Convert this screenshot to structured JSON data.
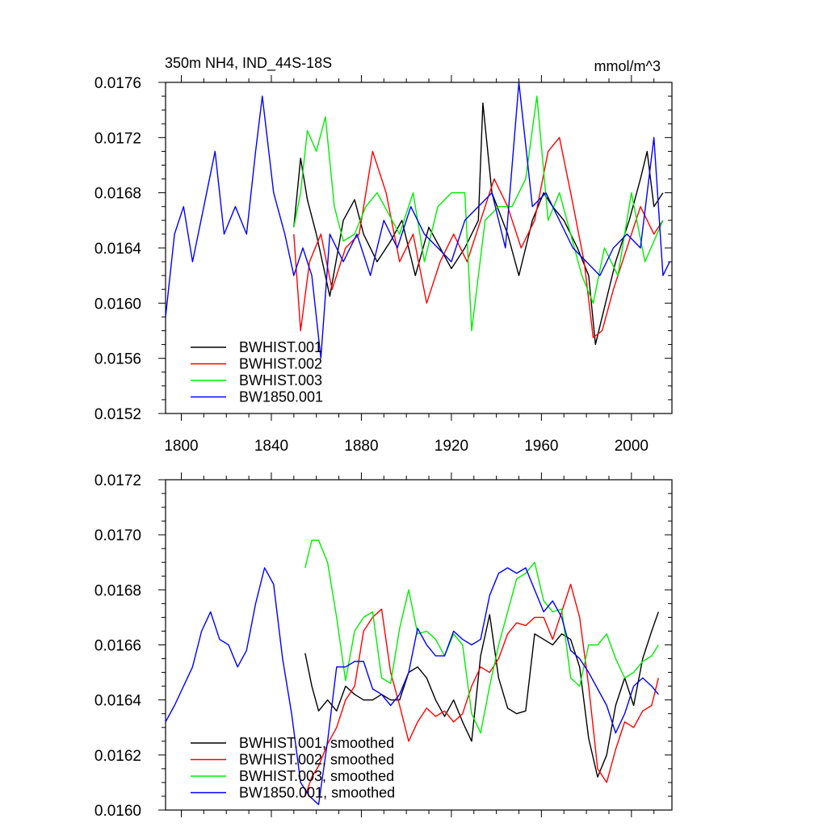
{
  "figure": {
    "title_left": "350m NH4, IND_44S-18S",
    "title_right": "mmol/m^3"
  },
  "colors": {
    "BWHIST.001": "#000000",
    "BWHIST.002": "#ff0000",
    "BWHIST.003": "#00ee00",
    "BW1850.001": "#0000ff"
  },
  "chart_data": [
    {
      "type": "line",
      "panel": "top",
      "title": "350m NH4, IND_44S-18S",
      "units": "mmol/m^3",
      "xlim": [
        1793,
        2018
      ],
      "ylim": [
        0.0152,
        0.0176
      ],
      "x_ticks": [
        1800,
        1840,
        1880,
        1920,
        1960,
        2000
      ],
      "x_tick_labels": [
        "1800",
        "1840",
        "1880",
        "1920",
        "1960",
        "2000"
      ],
      "y_ticks": [
        0.0152,
        0.0156,
        0.016,
        0.0164,
        0.0168,
        0.0172,
        0.0176
      ],
      "y_tick_labels": [
        "0.0152",
        "0.0156",
        "0.0160",
        "0.0164",
        "0.0168",
        "0.0172",
        "0.0176"
      ],
      "legend_position": "bottom-left",
      "series": [
        {
          "name": "BWHIST.001",
          "color": "#000000",
          "x_start": 1850,
          "x_end": 2014,
          "x": [
            1850,
            1853,
            1856,
            1860,
            1866,
            1872,
            1877,
            1881,
            1887,
            1893,
            1898,
            1904,
            1910,
            1915,
            1920,
            1926,
            1932,
            1934,
            1938,
            1945,
            1950,
            1956,
            1961,
            1965,
            1970,
            1976,
            1981,
            1984,
            1987,
            1993,
            1999,
            2004,
            2007,
            2010,
            2014
          ],
          "y": [
            0.01655,
            0.01705,
            0.01675,
            0.0165,
            0.01605,
            0.0166,
            0.01675,
            0.0165,
            0.0163,
            0.01645,
            0.0166,
            0.0162,
            0.01655,
            0.0164,
            0.01625,
            0.0164,
            0.0166,
            0.01745,
            0.0168,
            0.0165,
            0.0162,
            0.0166,
            0.0168,
            0.0167,
            0.0166,
            0.0164,
            0.0162,
            0.0157,
            0.0159,
            0.0163,
            0.0166,
            0.0169,
            0.0171,
            0.0167,
            0.0168
          ]
        },
        {
          "name": "BWHIST.002",
          "color": "#ff0000",
          "x_start": 1850,
          "x_end": 2014,
          "x": [
            1850,
            1853,
            1857,
            1862,
            1867,
            1873,
            1879,
            1885,
            1891,
            1897,
            1903,
            1909,
            1915,
            1921,
            1927,
            1933,
            1939,
            1945,
            1951,
            1957,
            1963,
            1968,
            1973,
            1979,
            1983,
            1987,
            1992,
            1998,
            2004,
            2010,
            2014
          ],
          "y": [
            0.0165,
            0.0158,
            0.0163,
            0.0165,
            0.0161,
            0.0164,
            0.0165,
            0.0171,
            0.0168,
            0.0163,
            0.0165,
            0.016,
            0.0163,
            0.0165,
            0.0163,
            0.0166,
            0.0169,
            0.0167,
            0.0164,
            0.0166,
            0.0171,
            0.0172,
            0.0168,
            0.0163,
            0.01575,
            0.0158,
            0.0161,
            0.0164,
            0.0167,
            0.0165,
            0.0166
          ]
        },
        {
          "name": "BWHIST.003",
          "color": "#00ee00",
          "x_start": 1850,
          "x_end": 2014,
          "x": [
            1850,
            1853,
            1856,
            1860,
            1864,
            1868,
            1872,
            1877,
            1882,
            1887,
            1892,
            1897,
            1903,
            1908,
            1914,
            1920,
            1926,
            1929,
            1935,
            1941,
            1947,
            1953,
            1958,
            1963,
            1968,
            1973,
            1978,
            1983,
            1988,
            1994,
            2000,
            2006,
            2014
          ],
          "y": [
            0.01655,
            0.0168,
            0.01725,
            0.0171,
            0.01735,
            0.0167,
            0.01645,
            0.0165,
            0.0167,
            0.0168,
            0.01665,
            0.0165,
            0.0168,
            0.0163,
            0.0167,
            0.0168,
            0.0168,
            0.0158,
            0.0166,
            0.0167,
            0.0167,
            0.0169,
            0.0175,
            0.0166,
            0.0168,
            0.0165,
            0.0162,
            0.016,
            0.0164,
            0.0162,
            0.0168,
            0.0163,
            0.0166
          ]
        },
        {
          "name": "BW1850.001",
          "color": "#0000ff",
          "x_start": 1793,
          "x_end": 2017,
          "x": [
            1793,
            1797,
            1801,
            1805,
            1810,
            1815,
            1819,
            1824,
            1829,
            1833,
            1836,
            1841,
            1846,
            1850,
            1854,
            1858,
            1862,
            1866,
            1872,
            1878,
            1884,
            1890,
            1896,
            1902,
            1908,
            1914,
            1920,
            1926,
            1932,
            1938,
            1944,
            1950,
            1956,
            1962,
            1968,
            1974,
            1980,
            1986,
            1992,
            1998,
            2004,
            2010,
            2014,
            2017
          ],
          "y": [
            0.0159,
            0.0165,
            0.0167,
            0.0163,
            0.0167,
            0.0171,
            0.0165,
            0.0167,
            0.0165,
            0.0171,
            0.0175,
            0.0168,
            0.0165,
            0.0162,
            0.0164,
            0.0162,
            0.0156,
            0.0165,
            0.0163,
            0.0165,
            0.0162,
            0.0166,
            0.0164,
            0.0167,
            0.0165,
            0.0164,
            0.0163,
            0.0166,
            0.0167,
            0.0168,
            0.0164,
            0.0176,
            0.0167,
            0.0168,
            0.0166,
            0.0164,
            0.0163,
            0.0162,
            0.0164,
            0.0165,
            0.0164,
            0.0172,
            0.0162,
            0.0163
          ]
        }
      ]
    },
    {
      "type": "line",
      "panel": "bottom",
      "xlim": [
        1793,
        2018
      ],
      "ylim": [
        0.016,
        0.0172
      ],
      "x_ticks": [
        1800,
        1840,
        1880,
        1920,
        1960,
        2000
      ],
      "y_ticks": [
        0.016,
        0.0162,
        0.0164,
        0.0166,
        0.0168,
        0.017,
        0.0172
      ],
      "y_tick_labels": [
        "0.0160",
        "0.0162",
        "0.0164",
        "0.0166",
        "0.0168",
        "0.0170",
        "0.0172"
      ],
      "legend_position": "bottom-left",
      "series": [
        {
          "name": "BWHIST.001, smoothed",
          "color": "#000000",
          "x": [
            1855,
            1858,
            1861,
            1865,
            1869,
            1873,
            1877,
            1881,
            1885,
            1889,
            1893,
            1897,
            1901,
            1905,
            1909,
            1913,
            1917,
            1921,
            1925,
            1929,
            1933,
            1937,
            1941,
            1945,
            1949,
            1953,
            1957,
            1961,
            1965,
            1969,
            1973,
            1977,
            1981,
            1985,
            1989,
            1993,
            1997,
            2001,
            2005,
            2009,
            2012
          ],
          "y": [
            0.01657,
            0.01645,
            0.01636,
            0.0164,
            0.01636,
            0.01645,
            0.01642,
            0.0164,
            0.0164,
            0.01642,
            0.0164,
            0.0164,
            0.0165,
            0.01652,
            0.01648,
            0.0164,
            0.01634,
            0.0164,
            0.01632,
            0.01625,
            0.01656,
            0.01671,
            0.01648,
            0.01637,
            0.01635,
            0.01636,
            0.01664,
            0.01662,
            0.0166,
            0.01664,
            0.01662,
            0.01652,
            0.01626,
            0.01612,
            0.0162,
            0.01638,
            0.01648,
            0.01638,
            0.01655,
            0.01665,
            0.01672
          ]
        },
        {
          "name": "BWHIST.002, smoothed",
          "color": "#ff0000",
          "x": [
            1855,
            1858,
            1861,
            1865,
            1869,
            1873,
            1877,
            1881,
            1885,
            1889,
            1893,
            1897,
            1901,
            1905,
            1909,
            1913,
            1917,
            1921,
            1925,
            1929,
            1933,
            1937,
            1941,
            1945,
            1949,
            1953,
            1957,
            1961,
            1965,
            1969,
            1973,
            1977,
            1981,
            1985,
            1989,
            1993,
            1997,
            2001,
            2005,
            2009,
            2012
          ],
          "y": [
            0.01605,
            0.01612,
            0.01616,
            0.01624,
            0.0163,
            0.0164,
            0.01645,
            0.01665,
            0.0167,
            0.01673,
            0.0165,
            0.01638,
            0.01625,
            0.01632,
            0.01637,
            0.01634,
            0.01636,
            0.01632,
            0.01635,
            0.01645,
            0.01652,
            0.0165,
            0.01655,
            0.01664,
            0.01668,
            0.01667,
            0.0167,
            0.0167,
            0.01662,
            0.01672,
            0.01682,
            0.0167,
            0.01645,
            0.01615,
            0.0161,
            0.01622,
            0.01632,
            0.0163,
            0.01636,
            0.01638,
            0.01648
          ]
        },
        {
          "name": "BWHIST.003, smoothed",
          "color": "#00ee00",
          "x": [
            1855,
            1858,
            1861,
            1865,
            1869,
            1873,
            1877,
            1881,
            1885,
            1889,
            1893,
            1897,
            1901,
            1905,
            1909,
            1913,
            1917,
            1921,
            1925,
            1929,
            1933,
            1937,
            1941,
            1945,
            1949,
            1953,
            1957,
            1961,
            1965,
            1969,
            1973,
            1977,
            1981,
            1985,
            1989,
            1993,
            1997,
            2001,
            2005,
            2009,
            2012
          ],
          "y": [
            0.01688,
            0.01698,
            0.01698,
            0.0169,
            0.0167,
            0.01647,
            0.01665,
            0.0167,
            0.01672,
            0.01648,
            0.01646,
            0.01666,
            0.0168,
            0.01664,
            0.01665,
            0.01662,
            0.01656,
            0.01664,
            0.0166,
            0.01635,
            0.01628,
            0.01645,
            0.0166,
            0.01672,
            0.01684,
            0.01686,
            0.0169,
            0.01676,
            0.01672,
            0.01673,
            0.01648,
            0.01645,
            0.0166,
            0.0166,
            0.01664,
            0.01655,
            0.01648,
            0.0165,
            0.01654,
            0.01656,
            0.0166
          ]
        },
        {
          "name": "BW1850.001, smoothed",
          "color": "#0000ff",
          "x": [
            1793,
            1797,
            1801,
            1805,
            1809,
            1813,
            1817,
            1821,
            1825,
            1829,
            1833,
            1837,
            1841,
            1845,
            1849,
            1853,
            1857,
            1861,
            1865,
            1869,
            1873,
            1877,
            1881,
            1885,
            1889,
            1893,
            1897,
            1901,
            1905,
            1909,
            1913,
            1917,
            1921,
            1925,
            1929,
            1933,
            1937,
            1941,
            1945,
            1949,
            1953,
            1957,
            1961,
            1965,
            1969,
            1973,
            1977,
            1981,
            1985,
            1989,
            1993,
            1997,
            2001,
            2005,
            2009,
            2012
          ],
          "y": [
            0.01632,
            0.01638,
            0.01645,
            0.01652,
            0.01665,
            0.01672,
            0.01662,
            0.0166,
            0.01652,
            0.01658,
            0.01675,
            0.01688,
            0.01682,
            0.01655,
            0.01635,
            0.0161,
            0.01605,
            0.01602,
            0.01625,
            0.01652,
            0.01652,
            0.01654,
            0.01654,
            0.01644,
            0.01642,
            0.01638,
            0.01642,
            0.0165,
            0.01666,
            0.0166,
            0.01656,
            0.01656,
            0.01665,
            0.01662,
            0.0166,
            0.01662,
            0.01678,
            0.01686,
            0.01688,
            0.01686,
            0.01688,
            0.0168,
            0.01672,
            0.01676,
            0.0167,
            0.01658,
            0.01655,
            0.0165,
            0.01644,
            0.01638,
            0.01628,
            0.01635,
            0.01645,
            0.01648,
            0.01645,
            0.01642
          ]
        }
      ]
    }
  ],
  "legends": {
    "top": [
      "BWHIST.001",
      "BWHIST.002",
      "BWHIST.003",
      "BW1850.001"
    ],
    "bottom": [
      "BWHIST.001, smoothed",
      "BWHIST.002, smoothed",
      "BWHIST.003, smoothed",
      "BW1850.001, smoothed"
    ]
  }
}
